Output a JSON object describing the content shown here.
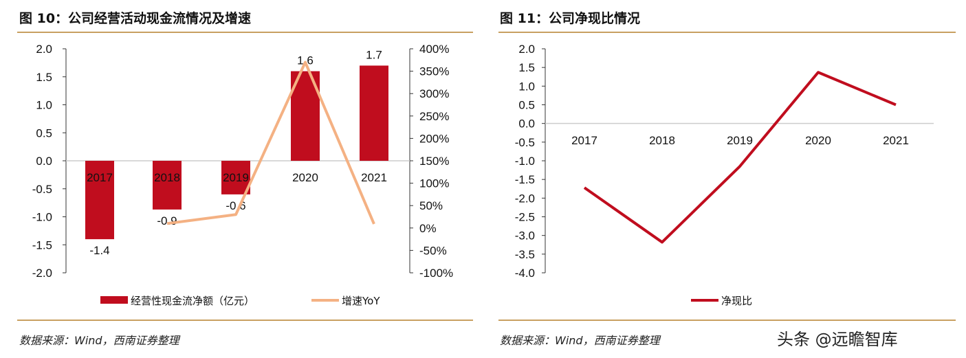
{
  "chart_data": [
    {
      "type": "bar+line",
      "title": "图 10：公司经营活动现金流情况及增速",
      "categories": [
        "2017",
        "2018",
        "2019",
        "2020",
        "2021"
      ],
      "series": [
        {
          "name": "经营性现金流净额（亿元）",
          "type": "bar",
          "axis": "left",
          "values": [
            -1.4,
            -0.87,
            -0.6,
            1.6,
            1.7
          ],
          "data_labels": [
            "-1.4",
            "-0.9",
            "-0.6",
            "1.6",
            "1.7"
          ],
          "color": "#c00d1e"
        },
        {
          "name": "增速YoY",
          "type": "line",
          "axis": "right",
          "values": [
            null,
            10,
            30,
            370,
            9
          ],
          "color": "#f4b183"
        }
      ],
      "ylim": [
        -2.0,
        2.0
      ],
      "yticks": [
        "2.0",
        "1.5",
        "1.0",
        "0.5",
        "0.0",
        "-0.5",
        "-1.0",
        "-1.5",
        "-2.0"
      ],
      "y2lim": [
        -100,
        400
      ],
      "y2ticks": [
        "400%",
        "350%",
        "300%",
        "250%",
        "200%",
        "150%",
        "100%",
        "50%",
        "0%",
        "-50%",
        "-100%"
      ],
      "legend": "bottom",
      "grid": false
    },
    {
      "type": "line",
      "title": "图 11：公司净现比情况",
      "categories": [
        "2017",
        "2018",
        "2019",
        "2020",
        "2021"
      ],
      "series": [
        {
          "name": "净现比",
          "values": [
            -1.72,
            -3.18,
            -1.15,
            1.37,
            0.5
          ],
          "color": "#c00d1e"
        }
      ],
      "ylim": [
        -4.0,
        2.0
      ],
      "yticks": [
        "2.0",
        "1.5",
        "1.0",
        "0.5",
        "0.0",
        "-0.5",
        "-1.0",
        "-1.5",
        "-2.0",
        "-2.5",
        "-3.0",
        "-3.5",
        "-4.0"
      ],
      "legend": "bottom",
      "grid": false
    }
  ],
  "source_left": "数据来源：Wind，西南证券整理",
  "source_right": "数据来源：Wind，西南证券整理",
  "watermark": "头条 @远瞻智库",
  "colors": {
    "rule": "#c8a060"
  }
}
